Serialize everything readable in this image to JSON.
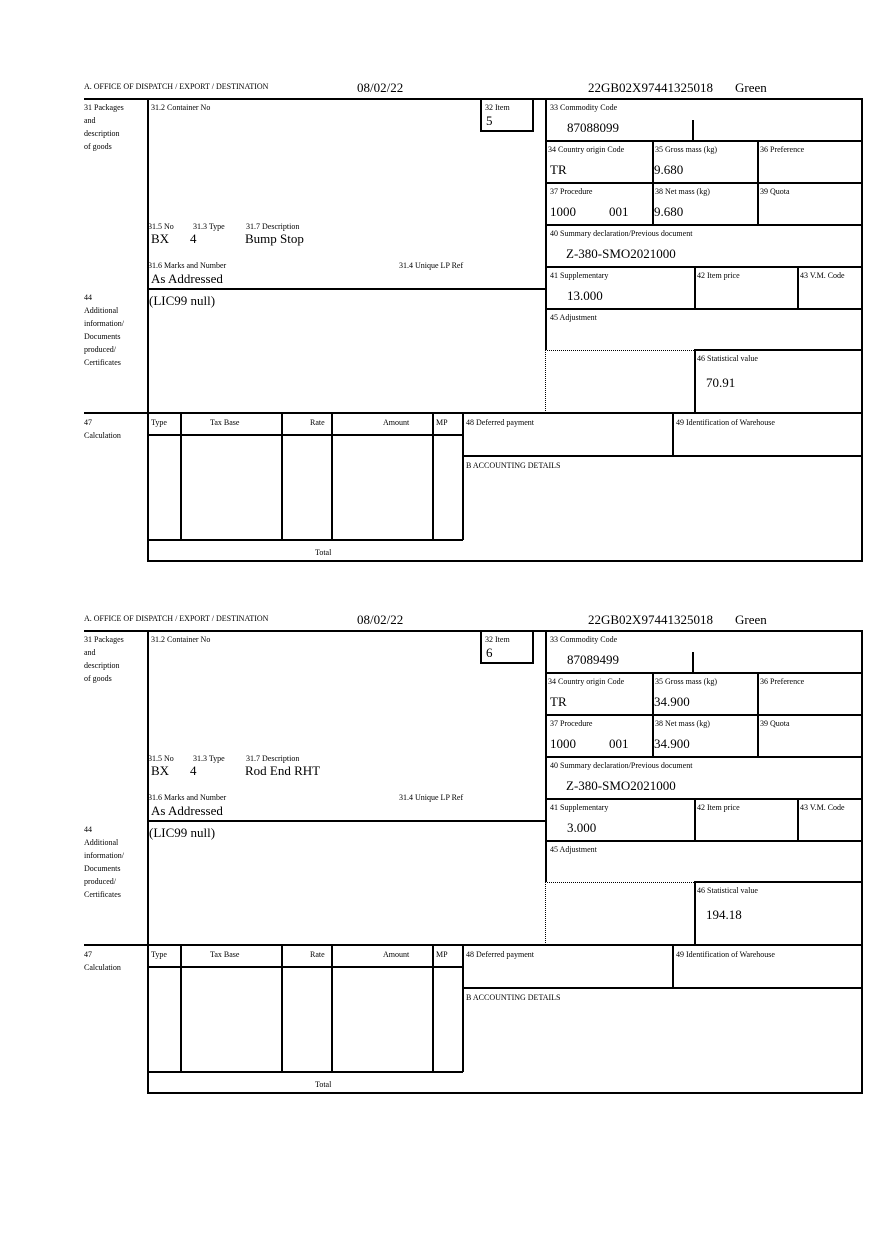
{
  "forms": [
    {
      "header": {
        "office": "A. OFFICE OF DISPATCH / EXPORT / DESTINATION",
        "date": "08/02/22",
        "reference": "22GB02X97441325018",
        "route": "Green"
      },
      "labels": {
        "packages": [
          "31 Packages",
          "and",
          "description",
          "of goods"
        ],
        "container": "31.2 Container No",
        "item": "32 Item",
        "no": "31.5 No",
        "type": "31.3 Type",
        "description": "31.7 Description",
        "marks": "31.6 Marks and Number",
        "unique_ref": "31.4 Unique LP Ref",
        "additional": [
          "44",
          "Additional",
          "information/",
          "Documents",
          "produced/",
          "Certificates"
        ],
        "commodity": "33 Commodity Code",
        "origin": "34 Country origin Code",
        "gross": "35 Gross mass (kg)",
        "preference": "36 Preference",
        "procedure": "37 Procedure",
        "net": "38 Net mass (kg)",
        "quota": "39 Quota",
        "summary": "40 Summary declaration/Previous document",
        "supplementary": "41 Supplementary",
        "item_price": "42 Item price",
        "vm_code": "43 V.M. Code",
        "adjustment": "45 Adjustment",
        "statistical": "46 Statistical value",
        "calculation": [
          "47",
          "Calculation"
        ],
        "calc_cols": [
          "Type",
          "Tax Base",
          "Rate",
          "Amount",
          "MP"
        ],
        "total": "Total",
        "deferred": "48 Deferred payment",
        "warehouse": "49 Identification of Warehouse",
        "accounting": "B ACCOUNTING DETAILS"
      },
      "values": {
        "item": "5",
        "pkg_kind": "BX",
        "pkg_count": "4",
        "description": "Bump Stop",
        "marks": "As Addressed",
        "additional": "(LIC99 null)",
        "commodity": "87088099",
        "origin": "TR",
        "gross": "9.680",
        "procedure": "1000",
        "procedure_extra": "001",
        "net": "9.680",
        "summary": "Z-380-SMO2021000",
        "supplementary": "13.000",
        "statistical": "70.91"
      }
    },
    {
      "header": {
        "office": "A. OFFICE OF DISPATCH / EXPORT / DESTINATION",
        "date": "08/02/22",
        "reference": "22GB02X97441325018",
        "route": "Green"
      },
      "labels": {
        "packages": [
          "31 Packages",
          "and",
          "description",
          "of goods"
        ],
        "container": "31.2 Container No",
        "item": "32 Item",
        "no": "31.5 No",
        "type": "31.3 Type",
        "description": "31.7 Description",
        "marks": "31.6 Marks and Number",
        "unique_ref": "31.4 Unique LP Ref",
        "additional": [
          "44",
          "Additional",
          "information/",
          "Documents",
          "produced/",
          "Certificates"
        ],
        "commodity": "33 Commodity Code",
        "origin": "34 Country origin Code",
        "gross": "35 Gross mass (kg)",
        "preference": "36 Preference",
        "procedure": "37 Procedure",
        "net": "38 Net mass (kg)",
        "quota": "39 Quota",
        "summary": "40 Summary declaration/Previous document",
        "supplementary": "41 Supplementary",
        "item_price": "42 Item price",
        "vm_code": "43 V.M. Code",
        "adjustment": "45 Adjustment",
        "statistical": "46 Statistical value",
        "calculation": [
          "47",
          "Calculation"
        ],
        "calc_cols": [
          "Type",
          "Tax Base",
          "Rate",
          "Amount",
          "MP"
        ],
        "total": "Total",
        "deferred": "48 Deferred payment",
        "warehouse": "49 Identification of Warehouse",
        "accounting": "B ACCOUNTING DETAILS"
      },
      "values": {
        "item": "6",
        "pkg_kind": "BX",
        "pkg_count": "4",
        "description": "Rod End RHT",
        "marks": "As Addressed",
        "additional": "(LIC99 null)",
        "commodity": "87089499",
        "origin": "TR",
        "gross": "34.900",
        "procedure": "1000",
        "procedure_extra": "001",
        "net": "34.900",
        "summary": "Z-380-SMO2021000",
        "supplementary": "3.000",
        "statistical": "194.18"
      }
    }
  ]
}
